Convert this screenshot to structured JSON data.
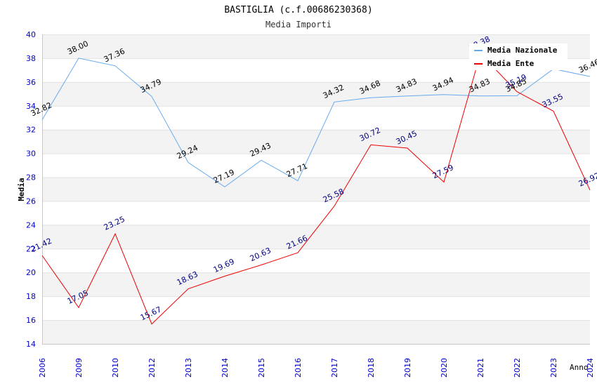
{
  "chart_data": {
    "type": "line",
    "title": "BASTIGLIA (c.f.00686230368)",
    "subtitle": "Media Importi",
    "xlabel": "Anno",
    "ylabel": "Media",
    "categories": [
      "2006",
      "2009",
      "2010",
      "2012",
      "2013",
      "2014",
      "2015",
      "2016",
      "2017",
      "2018",
      "2019",
      "2020",
      "2021",
      "2022",
      "2023",
      "2024"
    ],
    "ylim": [
      14,
      40
    ],
    "yticks": [
      "14",
      "16",
      "18",
      "20",
      "22",
      "24",
      "26",
      "28",
      "30",
      "32",
      "34",
      "36",
      "38",
      "40"
    ],
    "grid": true,
    "legend_position": "top-right",
    "series": [
      {
        "name": "Media Nazionale",
        "color": "#66aaee",
        "label_color": "#000000",
        "values": [
          32.82,
          38.0,
          37.36,
          34.79,
          29.24,
          27.19,
          29.43,
          27.71,
          34.32,
          34.68,
          34.83,
          34.94,
          34.83,
          34.85,
          37.1,
          36.46
        ],
        "labels": [
          "32.82",
          "38.00",
          "37.36",
          "34.79",
          "29.24",
          "27.19",
          "29.43",
          "27.71",
          "34.32",
          "34.68",
          "34.83",
          "34.94",
          "34.83",
          "34.85",
          "",
          "36.46"
        ]
      },
      {
        "name": "Media Ente",
        "color": "#ee0000",
        "label_color": "#000080",
        "values": [
          21.42,
          17.05,
          23.25,
          15.67,
          18.63,
          19.69,
          20.63,
          21.66,
          25.58,
          30.72,
          30.45,
          27.59,
          38.38,
          35.19,
          33.55,
          26.92
        ],
        "labels": [
          "21.42",
          "17.05",
          "23.25",
          "15.67",
          "18.63",
          "19.69",
          "20.63",
          "21.66",
          "25.58",
          "30.72",
          "30.45",
          "27.59",
          "38.38",
          "35.19",
          "33.55",
          "26.92"
        ]
      }
    ]
  }
}
